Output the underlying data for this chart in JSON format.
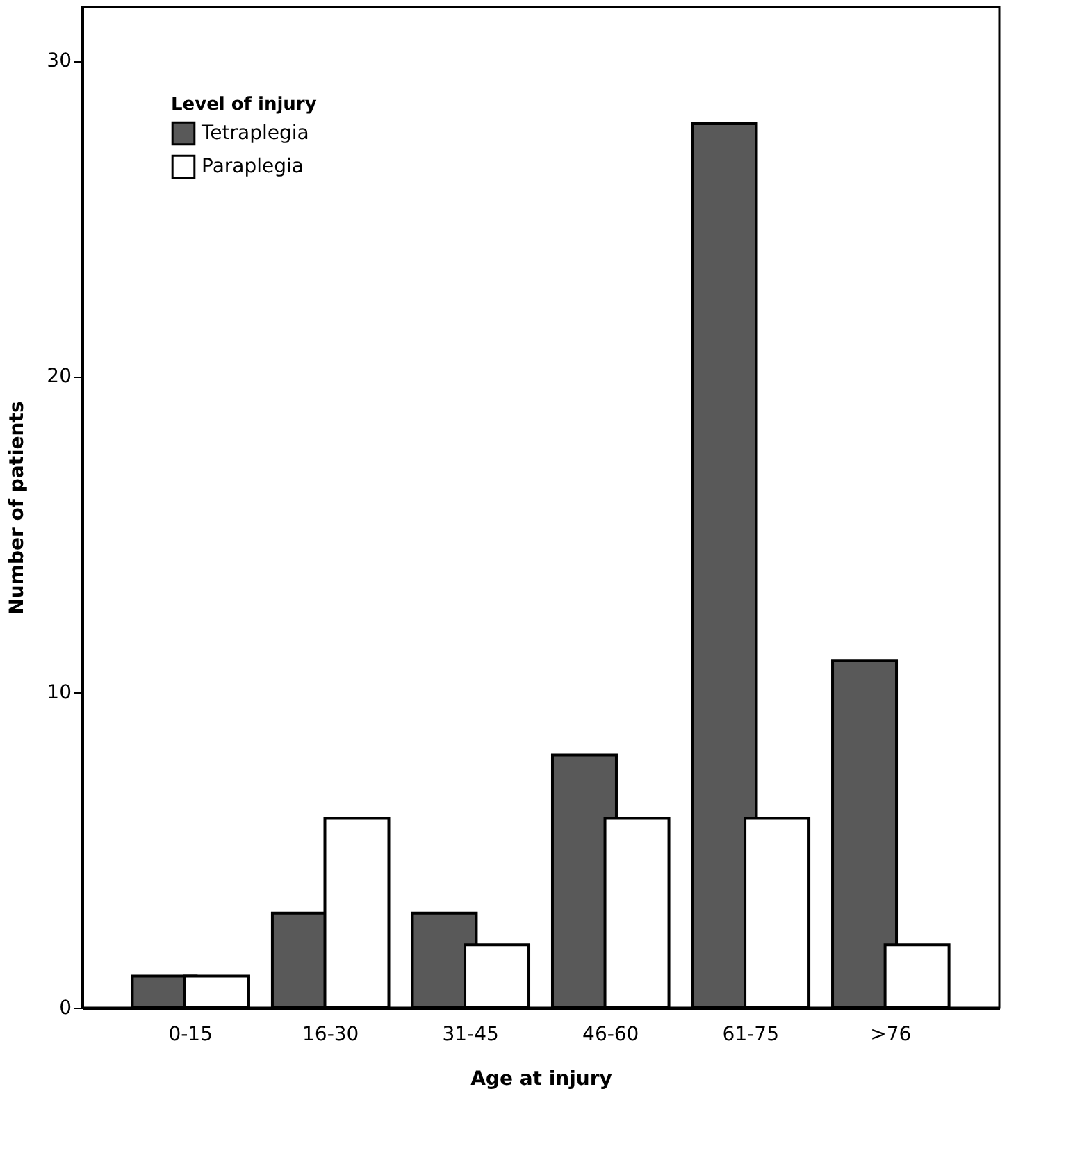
{
  "chart_data": {
    "type": "bar",
    "xlabel": "Age at injury",
    "ylabel": "Number of patients",
    "legend_title": "Level of injury",
    "categories": [
      "0-15",
      "16-30",
      "31-45",
      "46-60",
      "61-75",
      ">76"
    ],
    "series": [
      {
        "name": "Tetraplegia",
        "color": "#595959",
        "values": [
          1,
          3,
          3,
          8,
          28,
          11
        ]
      },
      {
        "name": "Paraplegia",
        "color": "#ffffff",
        "values": [
          1,
          6,
          2,
          6,
          6,
          2
        ]
      }
    ],
    "ylim": [
      0,
      31.7
    ],
    "yticks": [
      0,
      10,
      20,
      30
    ],
    "grid": false,
    "legend": "top left"
  }
}
